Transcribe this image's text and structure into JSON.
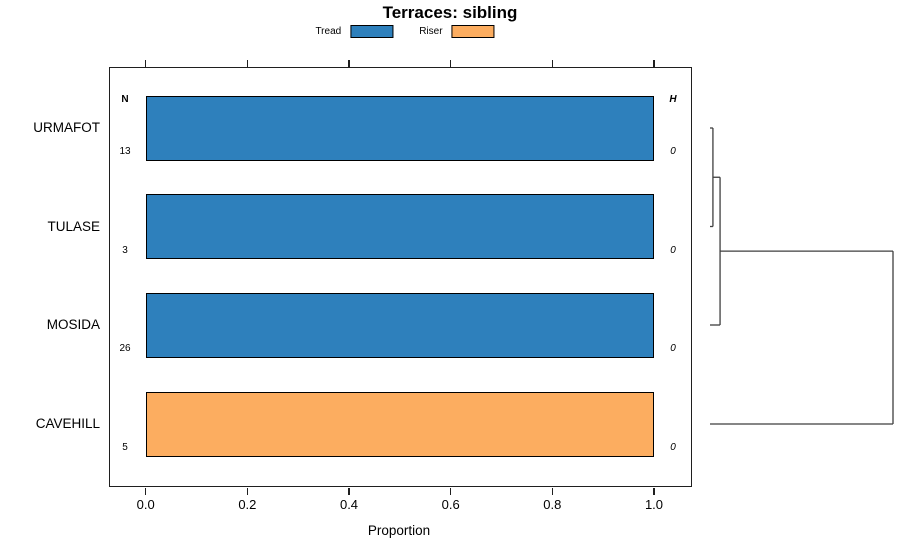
{
  "title": "Terraces: sibling",
  "legend": [
    {
      "label": "Tread",
      "color": "#2E80BC"
    },
    {
      "label": "Riser",
      "color": "#FCAD60"
    }
  ],
  "axis": {
    "label": "Proportion",
    "ticks": [
      "0.0",
      "0.2",
      "0.4",
      "0.6",
      "0.8",
      "1.0"
    ]
  },
  "columns": {
    "left_header": "N",
    "right_header": "H"
  },
  "rows": [
    {
      "label": "URMAFOT",
      "n": "13",
      "h": "0"
    },
    {
      "label": "TULASE",
      "n": "3",
      "h": "0"
    },
    {
      "label": "MOSIDA",
      "n": "26",
      "h": "0"
    },
    {
      "label": "CAVEHILL",
      "n": "5",
      "h": "0"
    }
  ],
  "chart_data": {
    "type": "bar",
    "orientation": "horizontal",
    "title": "Terraces: sibling",
    "xlabel": "Proportion",
    "xlim": [
      0,
      1
    ],
    "x_ticks": [
      0,
      0.2,
      0.4,
      0.6,
      0.8,
      1
    ],
    "grid": false,
    "legend_position": "top",
    "categories": [
      "URMAFOT",
      "TULASE",
      "MOSIDA",
      "CAVEHILL"
    ],
    "series": [
      {
        "name": "Tread",
        "color": "#2E80BC",
        "values": [
          1,
          1,
          1,
          0
        ]
      },
      {
        "name": "Riser",
        "color": "#FCAD60",
        "values": [
          0,
          0,
          0,
          1
        ]
      }
    ],
    "n_values": [
      13,
      3,
      26,
      5
    ],
    "h_values": [
      0,
      0,
      0,
      0
    ],
    "dendrogram": {
      "merges": [
        {
          "a": {
            "type": "leaf",
            "index": 0
          },
          "b": {
            "type": "leaf",
            "index": 1
          },
          "height": 0.016
        },
        {
          "a": {
            "type": "merge",
            "index": 0
          },
          "b": {
            "type": "leaf",
            "index": 2
          },
          "height": 0.055
        },
        {
          "a": {
            "type": "merge",
            "index": 1
          },
          "b": {
            "type": "leaf",
            "index": 3
          },
          "height": 1.0
        }
      ]
    }
  }
}
